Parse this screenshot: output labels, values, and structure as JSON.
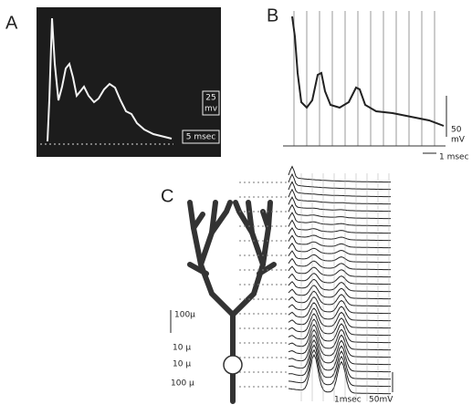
{
  "panel_a": {
    "label": "A",
    "voltage_scale": [
      "25",
      "mv"
    ],
    "time_scale": "5 msec"
  },
  "panel_b": {
    "label": "B",
    "voltage_scale": [
      "50",
      "mV"
    ],
    "time_scale": "1 msec"
  },
  "panel_c": {
    "label": "C",
    "length_scales": [
      "100μ",
      "10 μ",
      "10 μ",
      "100 μ"
    ],
    "time_scale": "1msec",
    "voltage_scale": "50mV"
  }
}
